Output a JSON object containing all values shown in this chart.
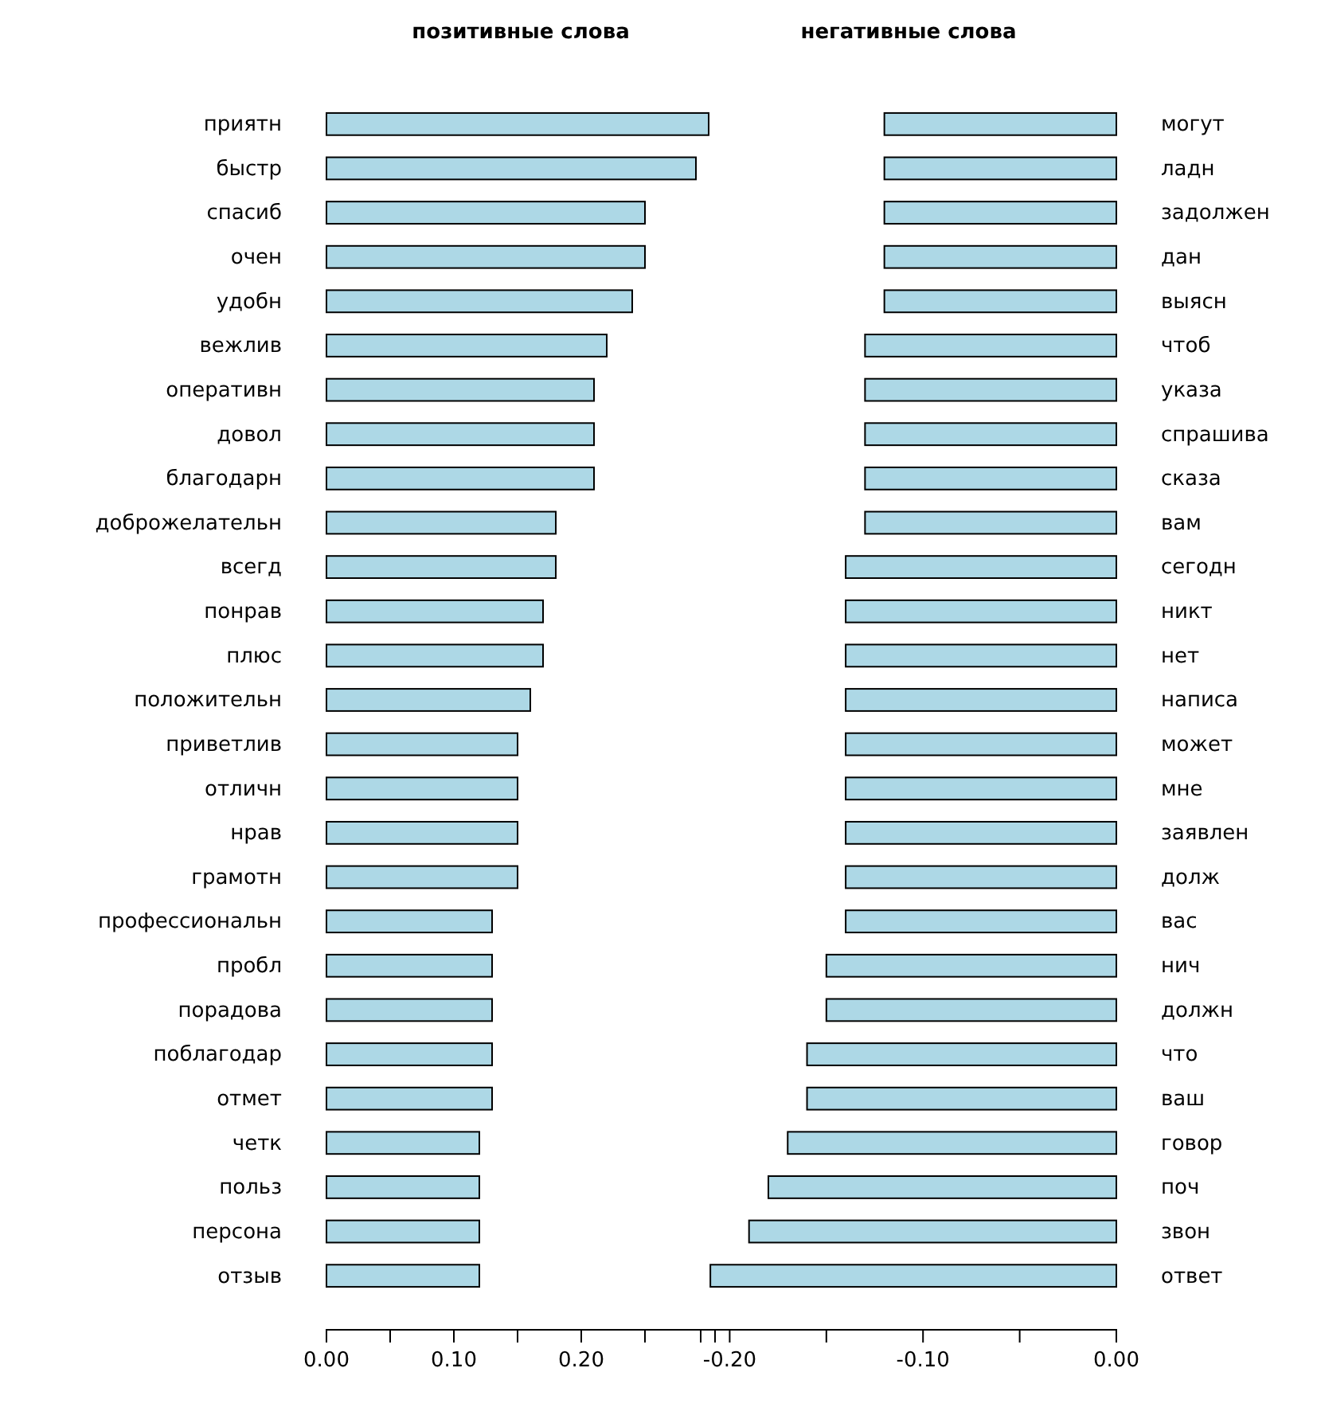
{
  "chart_data": [
    {
      "type": "bar",
      "orientation": "horizontal",
      "title": "позитивные слова",
      "color": "#add8e6",
      "categories": [
        "приятн",
        "быстр",
        "спасиб",
        "очен",
        "удобн",
        "вежлив",
        "оперативн",
        "довол",
        "благодарн",
        "доброжелательн",
        "всегд",
        "понрав",
        "плюс",
        "положительн",
        "приветлив",
        "отличн",
        "нрав",
        "грамотн",
        "профессиональн",
        "пробл",
        "порадова",
        "поблагодар",
        "отмет",
        "четк",
        "польз",
        "персона",
        "отзыв"
      ],
      "values": [
        0.3,
        0.29,
        0.25,
        0.25,
        0.24,
        0.22,
        0.21,
        0.21,
        0.21,
        0.18,
        0.18,
        0.17,
        0.17,
        0.16,
        0.15,
        0.15,
        0.15,
        0.15,
        0.13,
        0.13,
        0.13,
        0.13,
        0.13,
        0.12,
        0.12,
        0.12,
        0.12
      ],
      "xlim": [
        0,
        0.305
      ],
      "xticks": [
        {
          "value": 0,
          "label": "0.00"
        },
        {
          "value": 0.05,
          "label": null
        },
        {
          "value": 0.1,
          "label": "0.10"
        },
        {
          "value": 0.15,
          "label": null
        },
        {
          "value": 0.2,
          "label": "0.20"
        },
        {
          "value": 0.25,
          "label": null
        }
      ]
    },
    {
      "type": "bar",
      "orientation": "horizontal",
      "title": "негативные слова",
      "color": "#add8e6",
      "categories": [
        "могут",
        "ладн",
        "задолжен",
        "дан",
        "выясн",
        "чтоб",
        "указа",
        "спрашива",
        "сказа",
        "вам",
        "сегодн",
        "никт",
        "нет",
        "написа",
        "может",
        "мне",
        "заявлен",
        "долж",
        "вас",
        "нич",
        "должн",
        "что",
        "ваш",
        "говор",
        "поч",
        "звон",
        "ответ"
      ],
      "values": [
        -0.12,
        -0.12,
        -0.12,
        -0.12,
        -0.12,
        -0.13,
        -0.13,
        -0.13,
        -0.13,
        -0.13,
        -0.14,
        -0.14,
        -0.14,
        -0.14,
        -0.14,
        -0.14,
        -0.14,
        -0.14,
        -0.14,
        -0.15,
        -0.15,
        -0.16,
        -0.16,
        -0.17,
        -0.18,
        -0.19,
        -0.21
      ],
      "xlim": [
        -0.215,
        0
      ],
      "xticks": [
        {
          "value": -0.2,
          "label": "-0.20"
        },
        {
          "value": -0.15,
          "label": null
        },
        {
          "value": -0.1,
          "label": "-0.10"
        },
        {
          "value": -0.05,
          "label": null
        },
        {
          "value": 0,
          "label": "0.00"
        }
      ]
    }
  ]
}
